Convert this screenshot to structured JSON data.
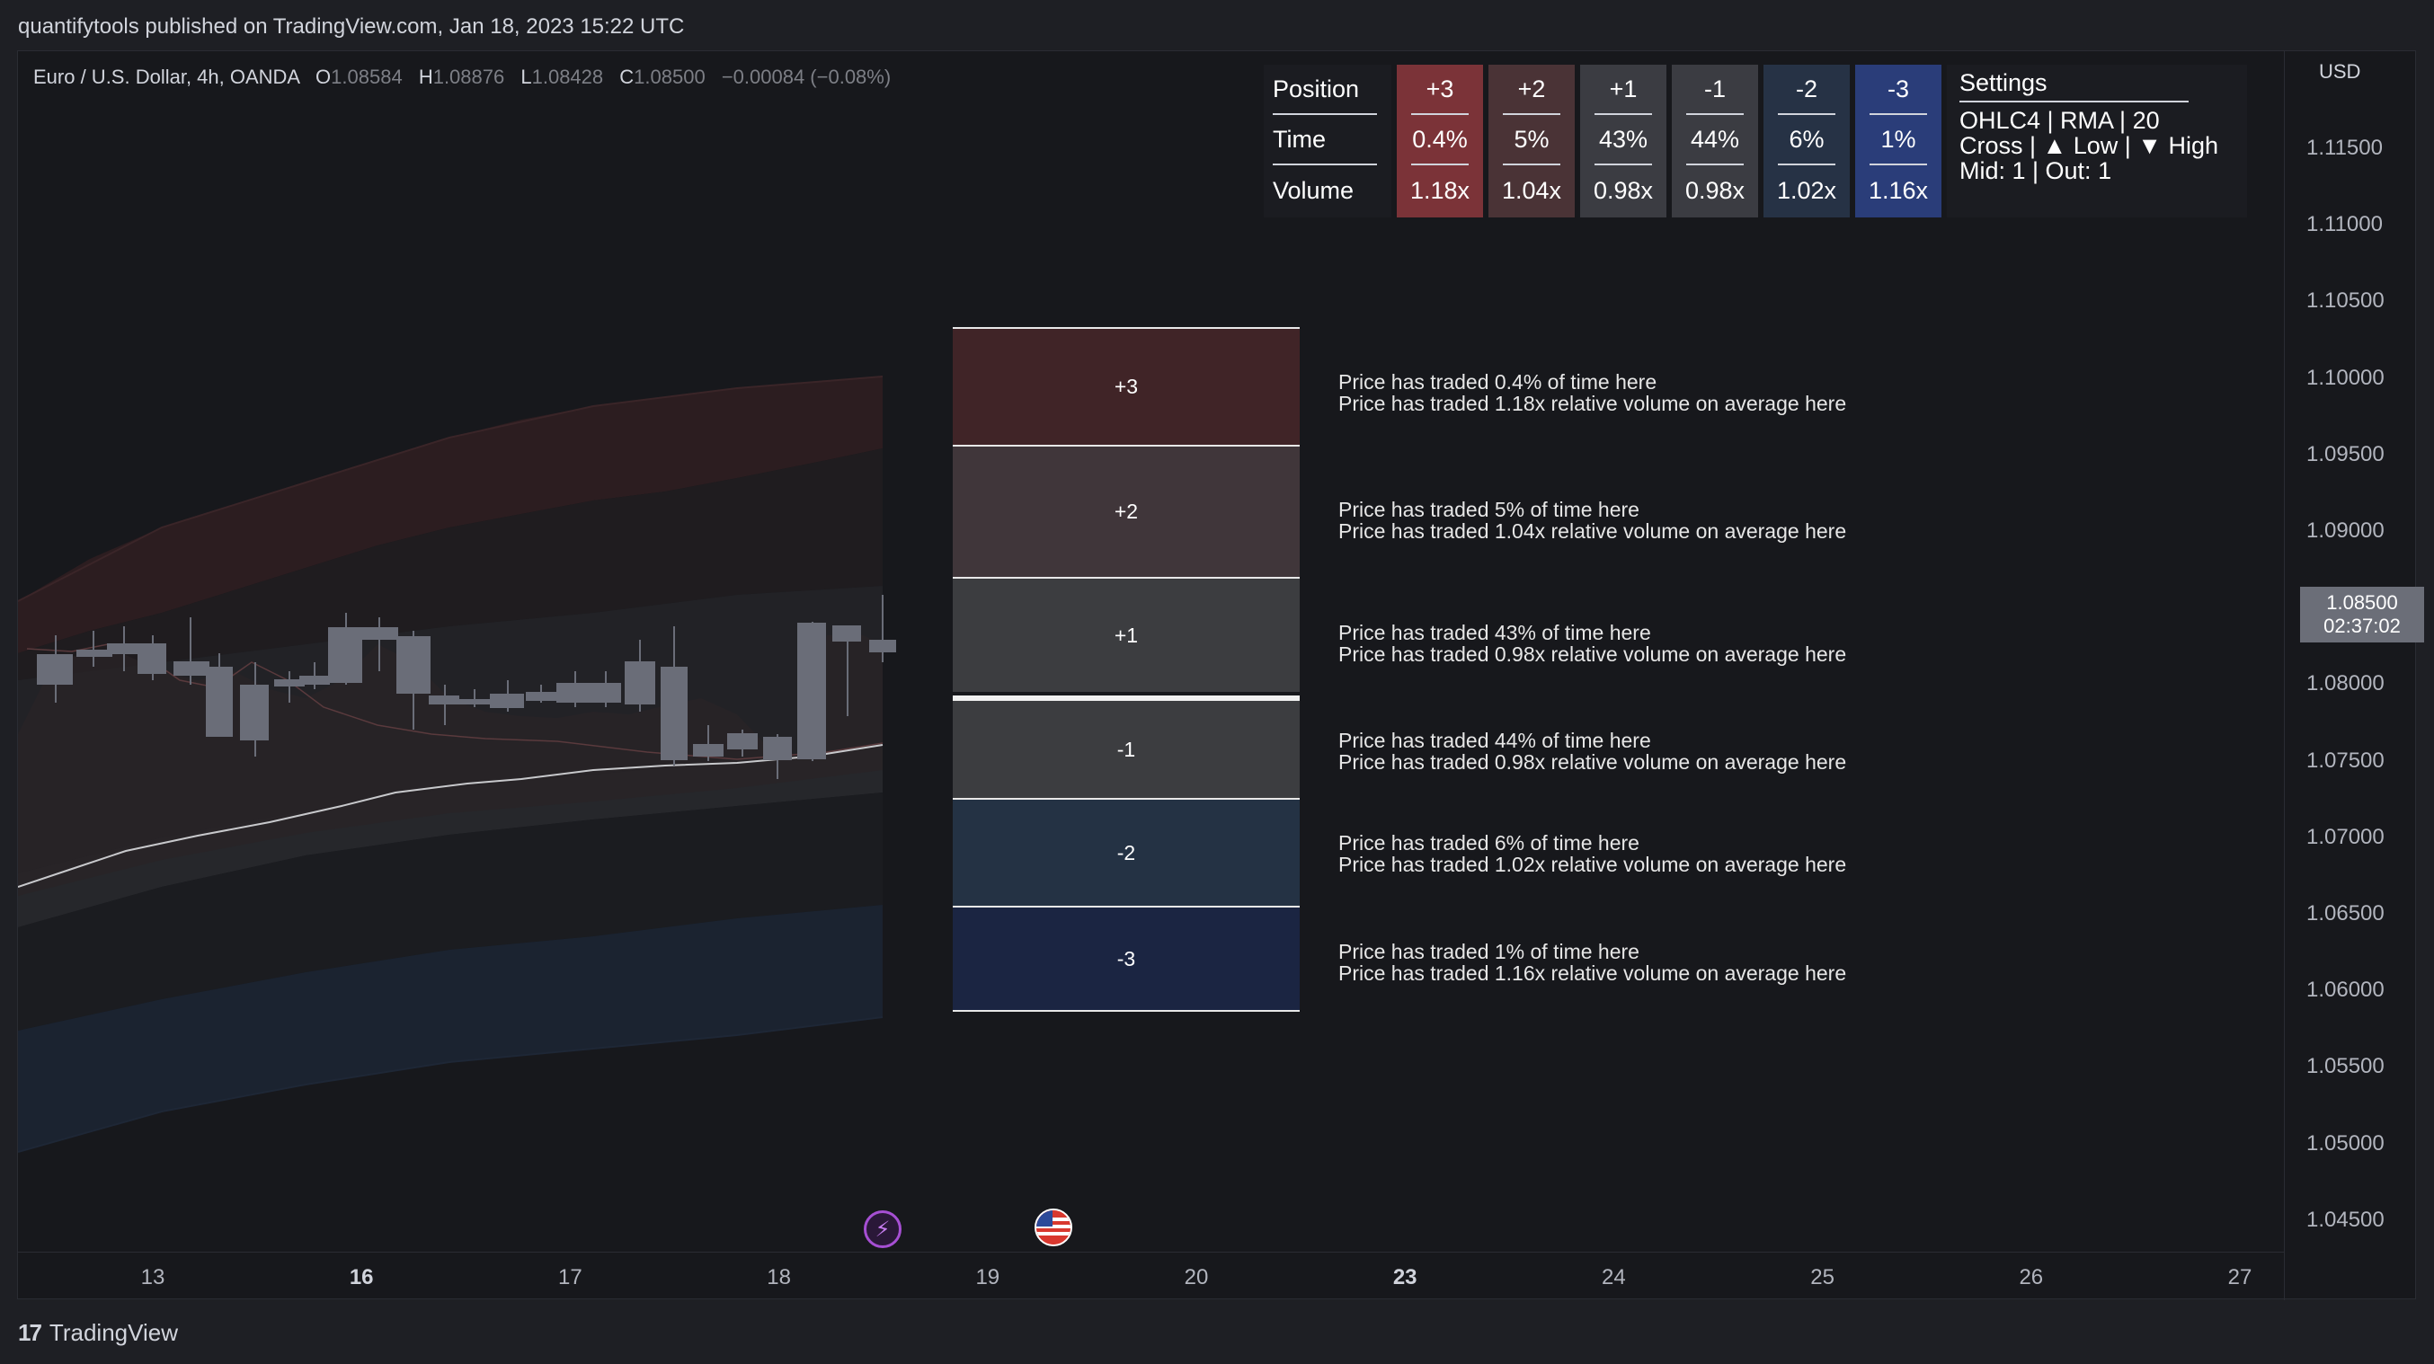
{
  "header": {
    "published_line": "quantifytools published on TradingView.com, Jan 18, 2023 15:22 UTC"
  },
  "symbol": {
    "name": "Euro / U.S. Dollar, 4h, OANDA",
    "open_label": "O",
    "open": "1.08584",
    "high_label": "H",
    "high": "1.08876",
    "low_label": "L",
    "low": "1.08428",
    "close_label": "C",
    "close": "1.08500",
    "change": "−0.00084 (−0.08%)"
  },
  "price_axis": {
    "currency": "USD",
    "ticks": [
      "1.11500",
      "1.11000",
      "1.10500",
      "1.10000",
      "1.09500",
      "1.09000",
      "1.08500",
      "1.08000",
      "1.07500",
      "1.07000",
      "1.06500",
      "1.06000",
      "1.05500",
      "1.05000",
      "1.04500"
    ],
    "last_price": "1.08500",
    "countdown": "02:37:02"
  },
  "time_axis": {
    "labels": [
      {
        "text": "13",
        "bold": false
      },
      {
        "text": "16",
        "bold": true
      },
      {
        "text": "17",
        "bold": false
      },
      {
        "text": "18",
        "bold": false
      },
      {
        "text": "19",
        "bold": false
      },
      {
        "text": "20",
        "bold": false
      },
      {
        "text": "23",
        "bold": true
      },
      {
        "text": "24",
        "bold": false
      },
      {
        "text": "25",
        "bold": false
      },
      {
        "text": "26",
        "bold": false
      },
      {
        "text": "27",
        "bold": false
      }
    ]
  },
  "stats_table": {
    "row_labels": [
      "Position",
      "Time",
      "Volume"
    ],
    "columns": [
      {
        "position": "+3",
        "time": "0.4%",
        "volume": "1.18x",
        "color": "#7b3338"
      },
      {
        "position": "+2",
        "time": "5%",
        "volume": "1.04x",
        "color": "#4a3336"
      },
      {
        "position": "+1",
        "time": "43%",
        "volume": "0.98x",
        "color": "#3b3c42"
      },
      {
        "position": "-1",
        "time": "44%",
        "volume": "0.98x",
        "color": "#3b3c42"
      },
      {
        "position": "-2",
        "time": "6%",
        "volume": "1.02x",
        "color": "#263245"
      },
      {
        "position": "-3",
        "time": "1%",
        "volume": "1.16x",
        "color": "#2a3d79"
      }
    ],
    "settings": {
      "title": "Settings",
      "line1": "OHLC4 | RMA | 20",
      "line2": "Cross | ▲ Low | ▼ High",
      "line3": "Mid: 1 | Out: 1"
    }
  },
  "zones": [
    {
      "label": "+3",
      "line1": "Price has traded 0.4% of time here",
      "line2": "Price has traded 1.18x relative volume on average here",
      "color": "#402427"
    },
    {
      "label": "+2",
      "line1": "Price has traded 5% of time here",
      "line2": "Price has traded 1.04x relative volume on average here",
      "color": "#40363a"
    },
    {
      "label": "+1",
      "line1": "Price has traded 43% of time here",
      "line2": "Price has traded 0.98x relative volume on average here",
      "color": "#3c3d40"
    },
    {
      "label": "-1",
      "line1": "Price has traded 44% of time here",
      "line2": "Price has traded 0.98x relative volume on average here",
      "color": "#3c3d40"
    },
    {
      "label": "-2",
      "line1": "Price has traded 6% of time here",
      "line2": "Price has traded 1.02x relative volume on average here",
      "color": "#243244"
    },
    {
      "label": "-3",
      "line1": "Price has traded 1% of time here",
      "line2": "Price has traded 1.16x relative volume on average here",
      "color": "#1b2542"
    }
  ],
  "events": {
    "bolt_icon": "lightning-icon",
    "flag_icon": "us-flag-icon"
  },
  "footer": {
    "brand": "TradingView"
  }
}
